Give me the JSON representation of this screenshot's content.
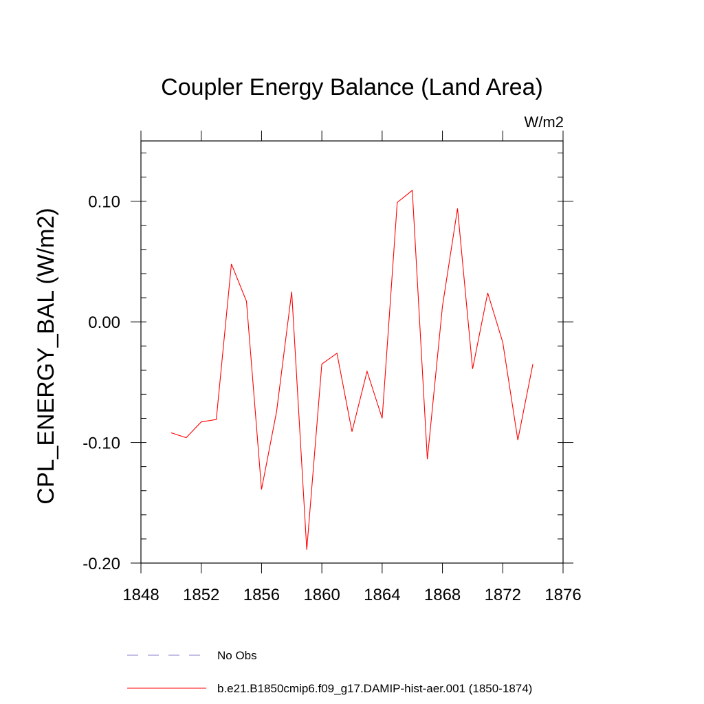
{
  "chart_data": {
    "type": "line",
    "title": "Coupler Energy Balance (Land Area)",
    "units_label": "W/m2",
    "xlabel": "",
    "ylabel": "CPL_ENERGY_BAL  (W/m2)",
    "xlim": [
      1848,
      1876
    ],
    "ylim": [
      -0.2,
      0.15
    ],
    "x_ticks": [
      1848,
      1852,
      1856,
      1860,
      1864,
      1868,
      1872,
      1876
    ],
    "x_tick_labels": [
      "1848",
      "1852",
      "1856",
      "1860",
      "1864",
      "1868",
      "1872",
      "1876"
    ],
    "y_ticks": [
      -0.2,
      -0.1,
      0.0,
      0.1
    ],
    "y_tick_labels": [
      "-0.20",
      "-0.10",
      "0.00",
      "0.10"
    ],
    "grid": false,
    "legend_position": "bottom",
    "series": [
      {
        "name": "b.e21.B1850cmip6.f09_g17.DAMIP-hist-aer.001 (1850-1874)",
        "color": "#ff0000",
        "x": [
          1850,
          1851,
          1852,
          1853,
          1854,
          1855,
          1856,
          1857,
          1858,
          1859,
          1860,
          1861,
          1862,
          1863,
          1864,
          1865,
          1866,
          1867,
          1868,
          1869,
          1870,
          1871,
          1872,
          1873,
          1874
        ],
        "y": [
          -0.092,
          -0.096,
          -0.083,
          -0.081,
          0.048,
          0.017,
          -0.139,
          -0.074,
          0.025,
          -0.189,
          -0.035,
          -0.026,
          -0.091,
          -0.041,
          -0.08,
          0.099,
          0.109,
          -0.114,
          0.013,
          0.094,
          -0.039,
          0.024,
          -0.017,
          -0.098,
          -0.035
        ]
      }
    ],
    "legend": [
      {
        "label": "No Obs",
        "color": "#8a7fc8",
        "style": "dashed"
      },
      {
        "label": "b.e21.B1850cmip6.f09_g17.DAMIP-hist-aer.001 (1850-1874)",
        "color": "#ff0000",
        "style": "solid"
      }
    ]
  }
}
